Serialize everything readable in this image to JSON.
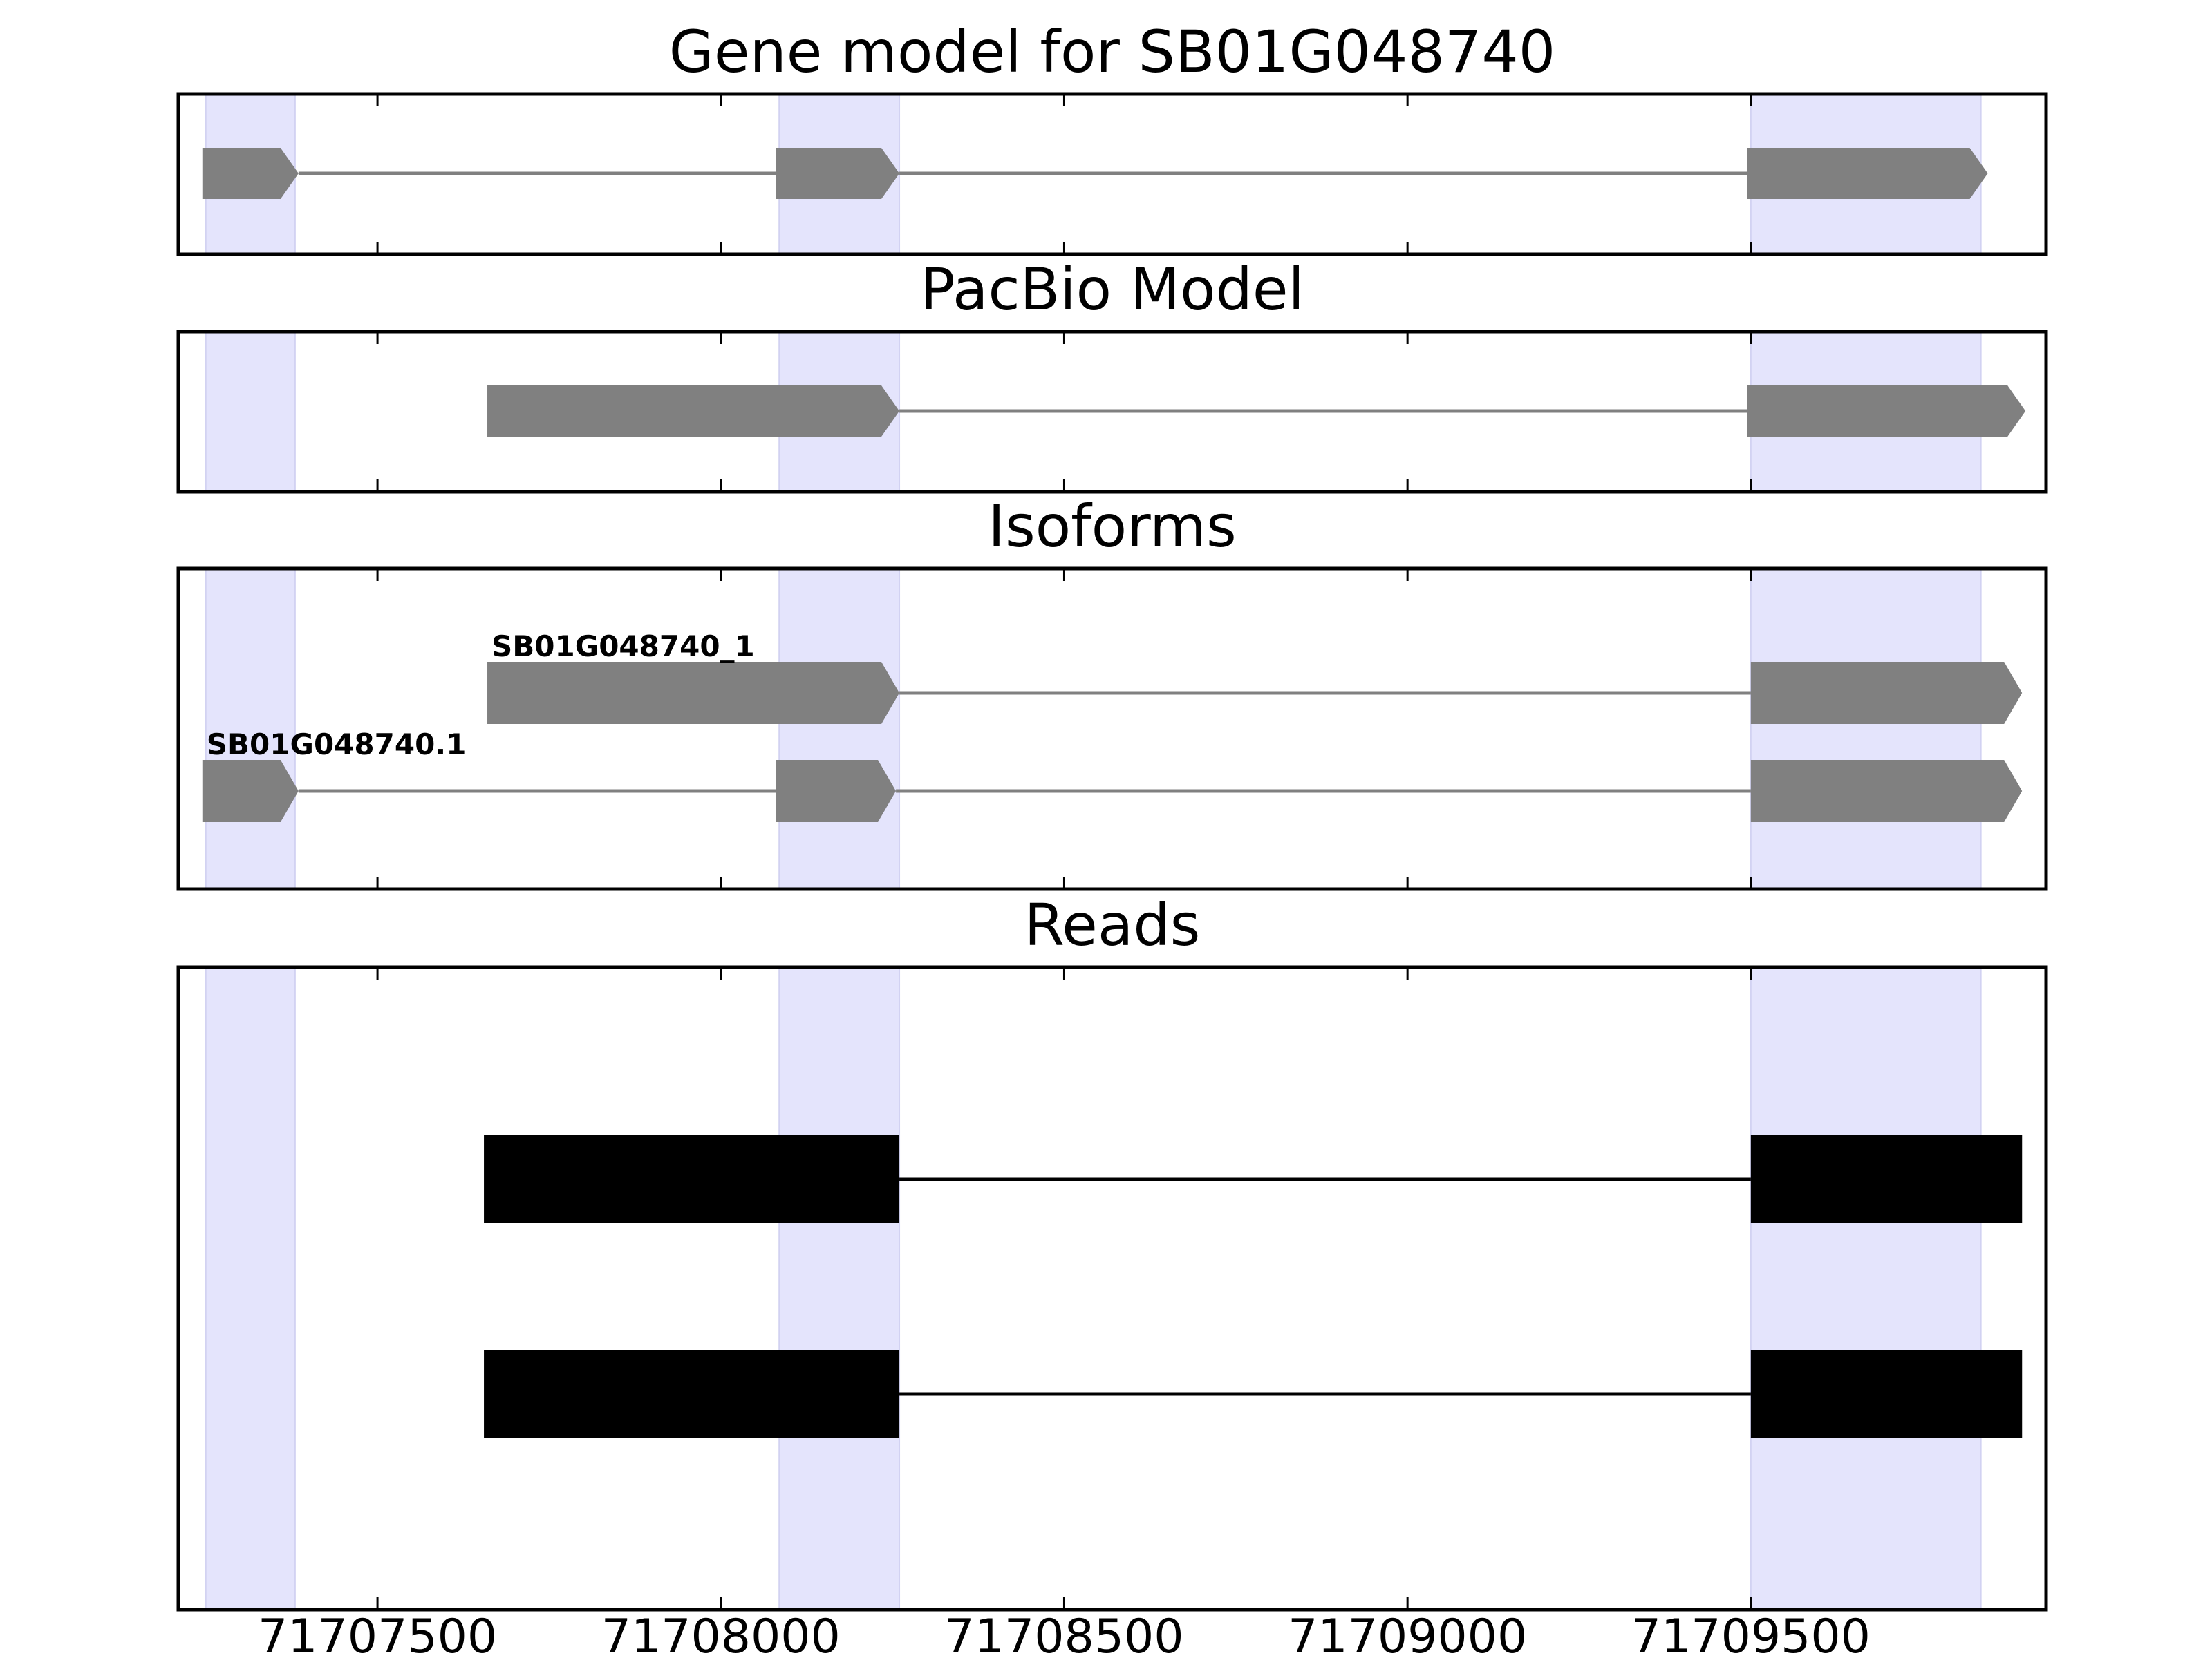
{
  "chart_data": {
    "type": "gene-track",
    "x_range": [
      71707210,
      71709930
    ],
    "x_ticks": [
      71707500,
      71708000,
      71708500,
      71709000,
      71709500
    ],
    "x_tick_labels": [
      "71707500",
      "71708000",
      "71708500",
      "71709000",
      "71709500"
    ],
    "highlight_regions": [
      [
        71707250,
        71707380
      ],
      [
        71708085,
        71708260
      ],
      [
        71709500,
        71709835
      ]
    ],
    "colors": {
      "highlight": "#e4e4fc",
      "model": "#808080",
      "read": "#000000",
      "frame": "#000000"
    },
    "panels": [
      {
        "title": "Gene model for SB01G048740",
        "rows": [
          {
            "label": "",
            "exons": [
              [
                71707245,
                71707385
              ],
              [
                71708080,
                71708260
              ],
              [
                71709495,
                71709845
              ]
            ]
          }
        ]
      },
      {
        "title": "PacBio Model",
        "rows": [
          {
            "label": "",
            "exons": [
              [
                71707660,
                71708260
              ],
              [
                71709495,
                71709900
              ]
            ]
          }
        ]
      },
      {
        "title": "Isoforms",
        "rows": [
          {
            "label": "SB01G048740_1",
            "exons": [
              [
                71707660,
                71708260
              ],
              [
                71709500,
                71709895
              ]
            ]
          },
          {
            "label": "SB01G048740.1",
            "exons": [
              [
                71707245,
                71707385
              ],
              [
                71708080,
                71708255
              ],
              [
                71709500,
                71709895
              ]
            ]
          }
        ]
      },
      {
        "title": "Reads",
        "rows": [
          {
            "label": "",
            "exons": [
              [
                71707655,
                71708260
              ],
              [
                71709500,
                71709895
              ]
            ]
          },
          {
            "label": "",
            "exons": [
              [
                71707655,
                71708260
              ],
              [
                71709500,
                71709895
              ]
            ]
          }
        ]
      }
    ]
  }
}
